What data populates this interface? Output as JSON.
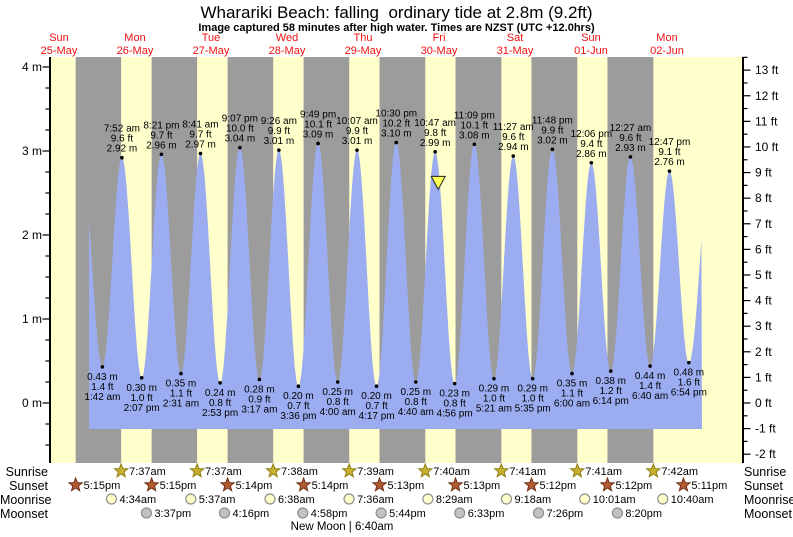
{
  "title": "Wharariki Beach: falling  ordinary tide at 2.8m (9.2ft)",
  "subtitle": "Image captured 58 minutes after high water. Times are NZST (UTC +12.0hrs)",
  "days": [
    {
      "weekday": "Sun",
      "date": "25-May"
    },
    {
      "weekday": "Mon",
      "date": "26-May"
    },
    {
      "weekday": "Tue",
      "date": "27-May"
    },
    {
      "weekday": "Wed",
      "date": "28-May"
    },
    {
      "weekday": "Thu",
      "date": "29-May"
    },
    {
      "weekday": "Fri",
      "date": "30-May"
    },
    {
      "weekday": "Sat",
      "date": "31-May"
    },
    {
      "weekday": "Sun",
      "date": "01-Jun"
    },
    {
      "weekday": "Mon",
      "date": "02-Jun"
    }
  ],
  "axes": {
    "left": {
      "unit": "m",
      "labeled_ticks": [
        4,
        3,
        2,
        1,
        0
      ]
    },
    "right": {
      "unit": "ft",
      "labeled_ticks": [
        13,
        12,
        11,
        10,
        9,
        8,
        7,
        6,
        5,
        4,
        3,
        2,
        1,
        0,
        -1,
        -2
      ]
    }
  },
  "colors": {
    "day_band": "#ffffcc",
    "night_band": "#9c9c9c",
    "tide_fill": "#9badf0",
    "date_text": "#ee1111",
    "marker_fill": "#ffff55",
    "sunrise_star": "#c8b12e",
    "sunrise_star_edge": "#8f7d14",
    "sunset_star": "#b35c31",
    "sunset_star_edge": "#6f3016",
    "moonrise_fill": "#ffffcc",
    "moonset_fill": "#c2c2c2",
    "moon_edge": "#8f8f8f"
  },
  "chart_data": {
    "type": "area",
    "title": "Wharariki Beach: falling  ordinary tide at 2.8m (9.2ft)",
    "x_axis": "date/time NZST, Sun 25-May to Mon 02-Jun",
    "ylabel_left": "m",
    "ylabel_right": "ft",
    "ylim_m": [
      -0.7,
      4.1
    ],
    "ylim_ft": [
      -2.3,
      13.5
    ],
    "tide_events": [
      {
        "day": 1,
        "type": "low",
        "time": "1:42 am",
        "m": 0.43,
        "ft": 1.4
      },
      {
        "day": 1,
        "type": "high",
        "time": "7:52 am",
        "m": 2.92,
        "ft": 9.6
      },
      {
        "day": 1,
        "type": "low",
        "time": "2:07 pm",
        "m": 0.3,
        "ft": 1.0
      },
      {
        "day": 1,
        "type": "high",
        "time": "8:21 pm",
        "m": 2.96,
        "ft": 9.7
      },
      {
        "day": 2,
        "type": "low",
        "time": "2:31 am",
        "m": 0.35,
        "ft": 1.1
      },
      {
        "day": 2,
        "type": "high",
        "time": "8:41 am",
        "m": 2.97,
        "ft": 9.7
      },
      {
        "day": 2,
        "type": "low",
        "time": "2:53 pm",
        "m": 0.24,
        "ft": 0.8
      },
      {
        "day": 2,
        "type": "high",
        "time": "9:07 pm",
        "m": 3.04,
        "ft": 10.0
      },
      {
        "day": 3,
        "type": "low",
        "time": "3:17 am",
        "m": 0.28,
        "ft": 0.9
      },
      {
        "day": 3,
        "type": "high",
        "time": "9:26 am",
        "m": 3.01,
        "ft": 9.9
      },
      {
        "day": 3,
        "type": "low",
        "time": "3:36 pm",
        "m": 0.2,
        "ft": 0.7
      },
      {
        "day": 3,
        "type": "high",
        "time": "9:49 pm",
        "m": 3.09,
        "ft": 10.1
      },
      {
        "day": 4,
        "type": "low",
        "time": "4:00 am",
        "m": 0.25,
        "ft": 0.8
      },
      {
        "day": 4,
        "type": "high",
        "time": "10:07 am",
        "m": 3.01,
        "ft": 9.9
      },
      {
        "day": 4,
        "type": "low",
        "time": "4:17 pm",
        "m": 0.2,
        "ft": 0.7
      },
      {
        "day": 4,
        "type": "high",
        "time": "10:30 pm",
        "m": 3.1,
        "ft": 10.2
      },
      {
        "day": 5,
        "type": "low",
        "time": "4:40 am",
        "m": 0.25,
        "ft": 0.8
      },
      {
        "day": 5,
        "type": "high",
        "time": "10:47 am",
        "m": 2.99,
        "ft": 9.8
      },
      {
        "day": 5,
        "type": "low",
        "time": "4:56 pm",
        "m": 0.23,
        "ft": 0.8
      },
      {
        "day": 5,
        "type": "high",
        "time": "11:09 pm",
        "m": 3.08,
        "ft": 10.1
      },
      {
        "day": 6,
        "type": "low",
        "time": "5:21 am",
        "m": 0.29,
        "ft": 1.0
      },
      {
        "day": 6,
        "type": "high",
        "time": "11:27 am",
        "m": 2.94,
        "ft": 9.6
      },
      {
        "day": 6,
        "type": "low",
        "time": "5:35 pm",
        "m": 0.29,
        "ft": 1.0
      },
      {
        "day": 6,
        "type": "high",
        "time": "11:48 pm",
        "m": 3.02,
        "ft": 9.9
      },
      {
        "day": 7,
        "type": "low",
        "time": "6:00 am",
        "m": 0.35,
        "ft": 1.1
      },
      {
        "day": 7,
        "type": "high",
        "time": "12:06 pm",
        "m": 2.86,
        "ft": 9.4
      },
      {
        "day": 7,
        "type": "low",
        "time": "6:14 pm",
        "m": 0.38,
        "ft": 1.2
      },
      {
        "day": 8,
        "type": "high",
        "time": "12:27 am",
        "m": 2.93,
        "ft": 9.6
      },
      {
        "day": 8,
        "type": "low",
        "time": "6:40 am",
        "m": 0.44,
        "ft": 1.4
      },
      {
        "day": 8,
        "type": "high",
        "time": "12:47 pm",
        "m": 2.76,
        "ft": 9.1
      },
      {
        "day": 8,
        "type": "low",
        "time": "6:54 pm",
        "m": 0.48,
        "ft": 1.6
      }
    ],
    "current_marker": {
      "day": 5,
      "time": "11:45 am",
      "height_m": 2.77
    }
  },
  "astronomy": {
    "rows": [
      {
        "key": "sunrise",
        "label": "Sunrise",
        "events": [
          {
            "day": 1,
            "time": "7:37am"
          },
          {
            "day": 2,
            "time": "7:37am"
          },
          {
            "day": 3,
            "time": "7:38am"
          },
          {
            "day": 4,
            "time": "7:39am"
          },
          {
            "day": 5,
            "time": "7:40am"
          },
          {
            "day": 6,
            "time": "7:41am"
          },
          {
            "day": 7,
            "time": "7:41am"
          },
          {
            "day": 8,
            "time": "7:42am"
          }
        ]
      },
      {
        "key": "sunset",
        "label": "Sunset",
        "events": [
          {
            "day": 0,
            "time": "5:15pm"
          },
          {
            "day": 1,
            "time": "5:15pm"
          },
          {
            "day": 2,
            "time": "5:14pm"
          },
          {
            "day": 3,
            "time": "5:14pm"
          },
          {
            "day": 4,
            "time": "5:13pm"
          },
          {
            "day": 5,
            "time": "5:13pm"
          },
          {
            "day": 6,
            "time": "5:12pm"
          },
          {
            "day": 7,
            "time": "5:12pm"
          },
          {
            "day": 8,
            "time": "5:11pm"
          }
        ]
      },
      {
        "key": "moonrise",
        "label": "Moonrise",
        "events": [
          {
            "day": 1,
            "time": "4:34am"
          },
          {
            "day": 2,
            "time": "5:37am"
          },
          {
            "day": 3,
            "time": "6:38am"
          },
          {
            "day": 4,
            "time": "7:36am"
          },
          {
            "day": 5,
            "time": "8:29am"
          },
          {
            "day": 6,
            "time": "9:18am"
          },
          {
            "day": 7,
            "time": "10:01am"
          },
          {
            "day": 8,
            "time": "10:40am"
          }
        ]
      },
      {
        "key": "moonset",
        "label": "Moonset",
        "events": [
          {
            "day": 1,
            "time": "3:37pm"
          },
          {
            "day": 2,
            "time": "4:16pm"
          },
          {
            "day": 3,
            "time": "4:58pm"
          },
          {
            "day": 4,
            "time": "5:44pm"
          },
          {
            "day": 5,
            "time": "6:33pm"
          },
          {
            "day": 6,
            "time": "7:26pm"
          },
          {
            "day": 7,
            "time": "8:20pm"
          }
        ]
      }
    ],
    "new_moon": "New Moon | 6:40am"
  }
}
